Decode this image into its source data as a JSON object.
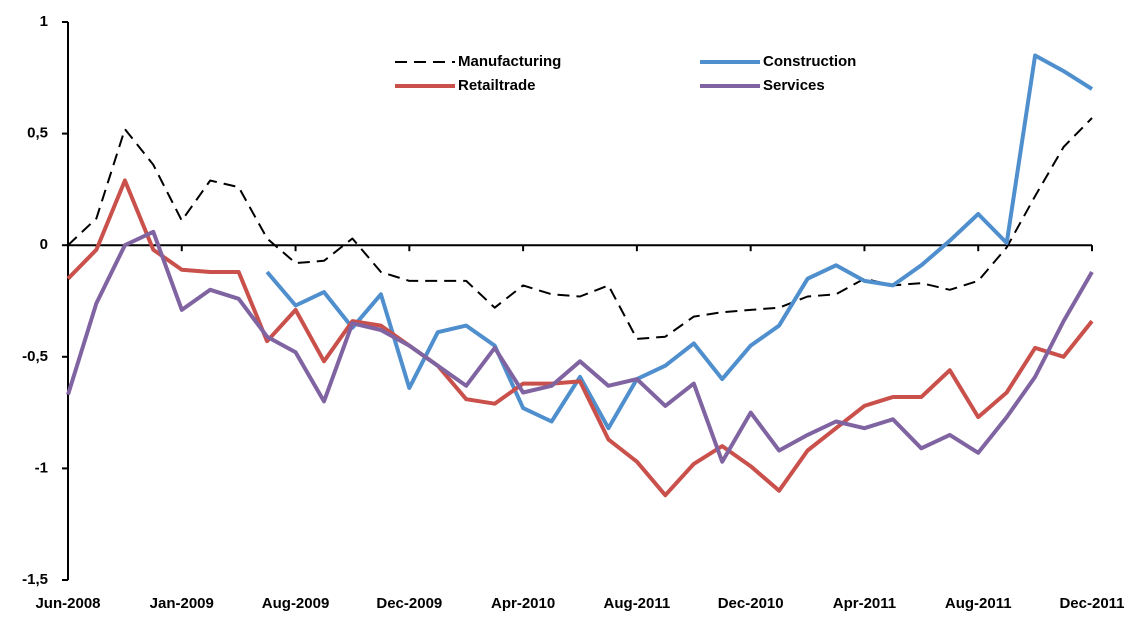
{
  "chart_data": {
    "type": "line",
    "categories": [
      "Jun-2008",
      null,
      null,
      null,
      "Jan-2009",
      null,
      null,
      null,
      "Aug-2009",
      null,
      null,
      null,
      "Dec-2009",
      null,
      null,
      null,
      "Apr-2010",
      null,
      null,
      null,
      "Aug-2011",
      null,
      null,
      null,
      "Dec-2010",
      null,
      null,
      null,
      "Apr-2011",
      null,
      null,
      null,
      "Aug-2011",
      null,
      null,
      null,
      "Dec-2011"
    ],
    "series": [
      {
        "name": "Manufacturing",
        "color": "#000000",
        "style": "dashed",
        "values": [
          0,
          0.12,
          0.52,
          0.36,
          0.11,
          0.29,
          0.26,
          0.03,
          -0.08,
          -0.07,
          0.03,
          -0.12,
          -0.16,
          -0.16,
          -0.16,
          -0.28,
          -0.18,
          -0.22,
          -0.23,
          -0.18,
          -0.42,
          -0.41,
          -0.32,
          -0.3,
          -0.29,
          -0.28,
          -0.23,
          -0.22,
          -0.15,
          -0.18,
          -0.17,
          -0.2,
          -0.16,
          -0.01,
          0.22,
          0.44,
          0.57
        ]
      },
      {
        "name": "Construction",
        "color": "#4f8fcd",
        "style": "solid",
        "values": [
          null,
          null,
          null,
          null,
          null,
          null,
          null,
          -0.12,
          -0.27,
          -0.21,
          -0.37,
          -0.22,
          -0.64,
          -0.39,
          -0.36,
          -0.45,
          -0.73,
          -0.79,
          -0.59,
          -0.82,
          -0.6,
          -0.54,
          -0.44,
          -0.6,
          -0.45,
          -0.36,
          -0.15,
          -0.09,
          -0.16,
          -0.18,
          -0.09,
          0.02,
          0.14,
          0.01,
          0.85,
          0.78,
          0.7
        ]
      },
      {
        "name": "Retailtrade",
        "color": "#c9504b",
        "style": "solid",
        "values": [
          -0.15,
          -0.02,
          0.29,
          -0.02,
          -0.11,
          -0.12,
          -0.12,
          -0.43,
          -0.29,
          -0.52,
          -0.34,
          -0.36,
          -0.45,
          -0.54,
          -0.69,
          -0.71,
          -0.62,
          -0.62,
          -0.61,
          -0.87,
          -0.97,
          -1.12,
          -0.98,
          -0.9,
          -0.99,
          -1.1,
          -0.92,
          -0.82,
          -0.72,
          -0.68,
          -0.68,
          -0.56,
          -0.77,
          -0.66,
          -0.46,
          -0.5,
          -0.34
        ]
      },
      {
        "name": "Services",
        "color": "#8064a2",
        "style": "solid",
        "values": [
          -0.67,
          -0.26,
          0,
          0.06,
          -0.29,
          -0.2,
          -0.24,
          -0.41,
          -0.48,
          -0.7,
          -0.35,
          -0.38,
          -0.45,
          -0.54,
          -0.63,
          -0.46,
          -0.66,
          -0.63,
          -0.52,
          -0.63,
          -0.6,
          -0.72,
          -0.62,
          -0.97,
          -0.75,
          -0.92,
          -0.85,
          -0.79,
          -0.82,
          -0.78,
          -0.91,
          -0.85,
          -0.93,
          -0.77,
          -0.59,
          -0.34,
          -0.12
        ]
      }
    ],
    "ylim": [
      -1.5,
      1
    ],
    "yticks": [
      {
        "value": -1.5,
        "label": "-1,5"
      },
      -1,
      {
        "value": -0.5,
        "label": "-0,5"
      },
      0,
      {
        "value": 0.5,
        "label": "0,5"
      },
      1
    ],
    "grid": false
  }
}
